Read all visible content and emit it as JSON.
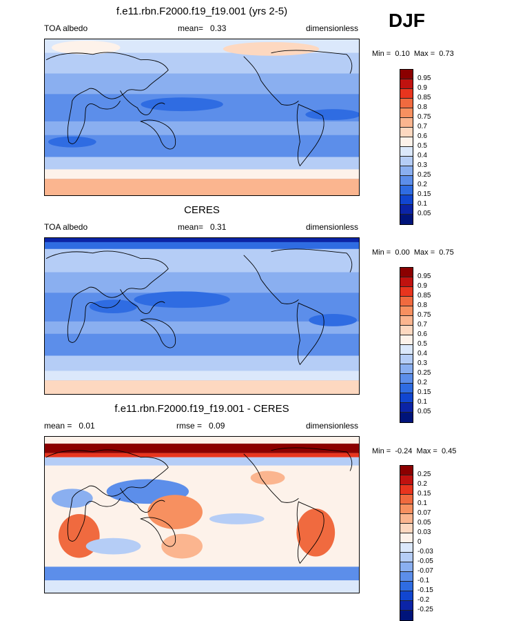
{
  "season": "DJF",
  "panels": [
    {
      "title": "f.e11.rbn.F2000.f19_f19.001 (yrs 2-5)",
      "left_label": "TOA albedo",
      "stat_label": "mean=",
      "stat_value": "0.33",
      "right_label": "dimensionless",
      "min_label": "Min =",
      "min_value": "0.10",
      "max_label": "Max =",
      "max_value": "0.73",
      "colorbar_labels": [
        "0.95",
        "0.9",
        "0.85",
        "0.8",
        "0.75",
        "0.7",
        "0.6",
        "0.5",
        "0.4",
        "0.3",
        "0.25",
        "0.2",
        "0.15",
        "0.1",
        "0.05"
      ],
      "colorbar_colors": [
        "#8b0000",
        "#c0120f",
        "#e8351e",
        "#f06a3f",
        "#f79060",
        "#fbb58f",
        "#fdd8c0",
        "#fdf2ea",
        "#dbe8fb",
        "#b5cdf6",
        "#8aaff0",
        "#5c8eea",
        "#2f6ce2",
        "#1146d0",
        "#0b24a6",
        "#00147a"
      ]
    },
    {
      "title": "CERES",
      "left_label": "TOA albedo",
      "stat_label": "mean=",
      "stat_value": "0.31",
      "right_label": "dimensionless",
      "min_label": "Min =",
      "min_value": "0.00",
      "max_label": "Max =",
      "max_value": "0.75",
      "colorbar_labels": [
        "0.95",
        "0.9",
        "0.85",
        "0.8",
        "0.75",
        "0.7",
        "0.6",
        "0.5",
        "0.4",
        "0.3",
        "0.25",
        "0.2",
        "0.15",
        "0.1",
        "0.05"
      ],
      "colorbar_colors": [
        "#8b0000",
        "#c0120f",
        "#e8351e",
        "#f06a3f",
        "#f79060",
        "#fbb58f",
        "#fdd8c0",
        "#fdf2ea",
        "#dbe8fb",
        "#b5cdf6",
        "#8aaff0",
        "#5c8eea",
        "#2f6ce2",
        "#1146d0",
        "#0b24a6",
        "#00147a"
      ]
    },
    {
      "title": "f.e11.rbn.F2000.f19_f19.001 - CERES",
      "left_label": "mean =",
      "left_value": "0.01",
      "stat_label": "rmse =",
      "stat_value": "0.09",
      "right_label": "dimensionless",
      "min_label": "Min =",
      "min_value": "-0.24",
      "max_label": "Max =",
      "max_value": "0.45",
      "colorbar_labels": [
        "0.25",
        "0.2",
        "0.15",
        "0.1",
        "0.07",
        "0.05",
        "0.03",
        "0",
        "-0.03",
        "-0.05",
        "-0.07",
        "-0.1",
        "-0.15",
        "-0.2",
        "-0.25"
      ],
      "colorbar_colors": [
        "#8b0000",
        "#c0120f",
        "#e8351e",
        "#f06a3f",
        "#f79060",
        "#fbb58f",
        "#fdd8c0",
        "#fdf2ea",
        "#dbe8fb",
        "#b5cdf6",
        "#8aaff0",
        "#5c8eea",
        "#2f6ce2",
        "#1146d0",
        "#0b24a6",
        "#00147a"
      ]
    }
  ]
}
